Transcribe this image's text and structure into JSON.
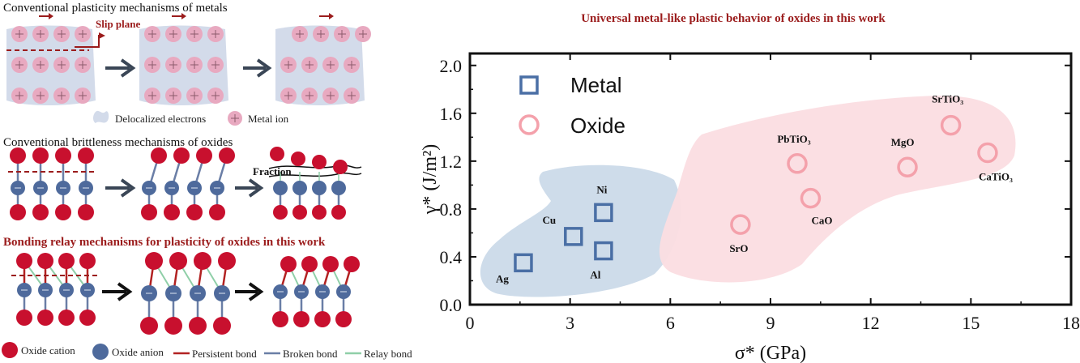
{
  "left_panel": {
    "section1_title": "Conventional plasticity mechanisms of metals",
    "slip_plane_label": "Slip plane",
    "legend_delocalized": "Delocalized electrons",
    "legend_metal_ion": "Metal ion",
    "section2_title": "Conventional brittleness mechanisms of oxides",
    "fraction_label": "Fraction",
    "section3_title": "Bonding relay mechanisms for plasticity of oxides in this work",
    "legend_oxide_cation": "Oxide cation",
    "legend_oxide_anion": "Oxide anion",
    "legend_persistent_bond": "Persistent bond",
    "legend_broken_bond": "Broken bond",
    "legend_relay_bond": "Relay bond"
  },
  "colors": {
    "metal_marker": "#4a6fa5",
    "oxide_marker": "#f4a1ab",
    "metal_region": "#c9d8e8",
    "oxide_region": "#fbdde2",
    "title_red": "#9b1c1c",
    "cation": "#c8102e",
    "anion": "#4e6a9c",
    "persistent_bond": "#b22222",
    "broken_bond": "#6a7ea6",
    "relay_bond": "#8fcfa8",
    "metal_ion": "#e8a9c0",
    "electron_cloud": "#d3dbea",
    "arrow": "#3a4656"
  },
  "chart_data": {
    "type": "scatter",
    "title": "Universal metal-like plastic behavior of oxides in this work",
    "xlabel": "σ* (GPa)",
    "ylabel": "γ* (J/m²)",
    "xlim": [
      0,
      18
    ],
    "ylim": [
      0,
      2.1
    ],
    "xticks": [
      0,
      3,
      6,
      9,
      12,
      15,
      18
    ],
    "yticks": [
      0.0,
      0.4,
      0.8,
      1.2,
      1.6,
      2.0
    ],
    "xtick_labels": [
      "0",
      "3",
      "6",
      "9",
      "12",
      "15",
      "18"
    ],
    "ytick_labels": [
      "0.0",
      "0.4",
      "0.8",
      "1.2",
      "1.6",
      "2.0"
    ],
    "legend_position": "top-left",
    "series": [
      {
        "name": "Metal",
        "marker": "square",
        "points": [
          {
            "label": "Ag",
            "x": 1.6,
            "y": 0.35
          },
          {
            "label": "Cu",
            "x": 3.1,
            "y": 0.57
          },
          {
            "label": "Al",
            "x": 4.0,
            "y": 0.45
          },
          {
            "label": "Ni",
            "x": 4.0,
            "y": 0.77
          }
        ]
      },
      {
        "name": "Oxide",
        "marker": "circle",
        "points": [
          {
            "label": "SrO",
            "x": 8.1,
            "y": 0.67
          },
          {
            "label": "CaO",
            "x": 10.2,
            "y": 0.89
          },
          {
            "label": "PbTiO₃",
            "x": 9.8,
            "y": 1.18
          },
          {
            "label": "MgO",
            "x": 13.1,
            "y": 1.15
          },
          {
            "label": "SrTiO₃",
            "x": 14.4,
            "y": 1.5
          },
          {
            "label": "CaTiO₃",
            "x": 15.5,
            "y": 1.27
          }
        ]
      }
    ]
  }
}
